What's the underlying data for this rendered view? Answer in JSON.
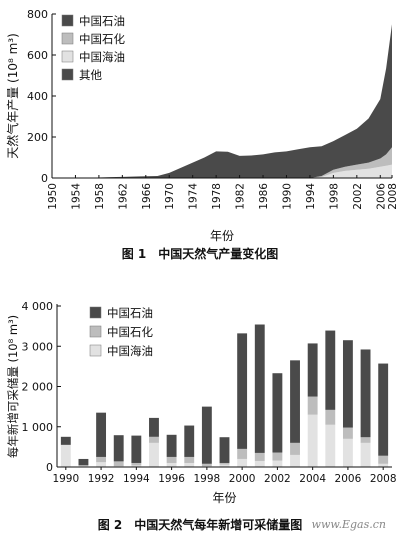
{
  "colors": {
    "cnpc": "#4a4a4a",
    "sinopec": "#bdbdbd",
    "cnooc": "#e2e2e2",
    "other": "#4a4a4a",
    "axis": "#111111"
  },
  "chart_data": [
    {
      "type": "area",
      "caption": "图 1　中国天然气产量变化图",
      "xlabel": "年份",
      "ylabel": "天然气年产量 (10⁸ m³)",
      "ylim": [
        0,
        800
      ],
      "yticks": [
        0,
        200,
        400,
        600,
        800
      ],
      "xlim": [
        1950,
        2008
      ],
      "xticks": [
        1950,
        1954,
        1958,
        1962,
        1966,
        1970,
        1974,
        1978,
        1982,
        1986,
        1990,
        1994,
        1998,
        2002,
        2006,
        2008
      ],
      "legend_position": "top-left",
      "x": [
        1950,
        1955,
        1960,
        1965,
        1968,
        1970,
        1972,
        1974,
        1976,
        1978,
        1980,
        1982,
        1984,
        1986,
        1988,
        1990,
        1992,
        1994,
        1996,
        1998,
        2000,
        2002,
        2004,
        2006,
        2007,
        2008
      ],
      "series": [
        {
          "name": "中国海油",
          "values": [
            0,
            0,
            0,
            0,
            0,
            0,
            0,
            0,
            0,
            0,
            0,
            0,
            0,
            0,
            0,
            0,
            0,
            0,
            5,
            25,
            35,
            40,
            45,
            55,
            60,
            65
          ]
        },
        {
          "name": "中国石化",
          "values": [
            0,
            0,
            0,
            0,
            0,
            0,
            0,
            0,
            0,
            0,
            0,
            0,
            0,
            0,
            0,
            0,
            0,
            0,
            5,
            15,
            20,
            25,
            30,
            40,
            55,
            85
          ]
        },
        {
          "name": "中国石油",
          "values": [
            0,
            0,
            4,
            8,
            10,
            25,
            50,
            75,
            100,
            130,
            128,
            108,
            110,
            115,
            125,
            130,
            140,
            150,
            145,
            140,
            155,
            175,
            215,
            290,
            420,
            600
          ]
        },
        {
          "name": "其他",
          "values": [
            0,
            0,
            0,
            0,
            0,
            0,
            0,
            0,
            0,
            0,
            0,
            0,
            0,
            0,
            0,
            0,
            0,
            0,
            0,
            0,
            0,
            0,
            0,
            0,
            0,
            0
          ]
        }
      ],
      "legend_order": [
        "中国石油",
        "中国石化",
        "中国海油",
        "其他"
      ]
    },
    {
      "type": "bar",
      "caption": "图 2　中国天然气每年新增可采储量图",
      "xlabel": "年份",
      "ylabel": "每年新增可采储量 (10⁸ m³)",
      "ylim": [
        0,
        4000
      ],
      "yticks": [
        0,
        1000,
        2000,
        3000,
        4000
      ],
      "ytick_labels": [
        "0",
        "1 000",
        "2 000",
        "3 000",
        "4 000"
      ],
      "categories": [
        "1990",
        "1991",
        "1992",
        "1993",
        "1994",
        "1995",
        "1996",
        "1997",
        "1998",
        "1999",
        "2000",
        "2001",
        "2002",
        "2003",
        "2004",
        "2005",
        "2006",
        "2007",
        "2008"
      ],
      "xtick_labels": [
        "1990",
        "1992",
        "1994",
        "1996",
        "1998",
        "2000",
        "2002",
        "2004",
        "2006",
        "2008"
      ],
      "legend_position": "top-left",
      "series": [
        {
          "name": "中国海油",
          "values": [
            550,
            40,
            120,
            20,
            40,
            600,
            100,
            100,
            20,
            60,
            200,
            150,
            160,
            300,
            1300,
            1050,
            700,
            600,
            80
          ]
        },
        {
          "name": "中国石化",
          "values": [
            0,
            0,
            130,
            120,
            60,
            150,
            150,
            150,
            60,
            40,
            250,
            200,
            200,
            300,
            450,
            370,
            280,
            140,
            200
          ]
        },
        {
          "name": "中国石油",
          "values": [
            200,
            160,
            1100,
            650,
            680,
            470,
            550,
            780,
            1420,
            640,
            2870,
            3190,
            1970,
            2050,
            1320,
            1970,
            2170,
            2180,
            2290
          ]
        }
      ],
      "legend_order": [
        "中国石油",
        "中国石化",
        "中国海油"
      ]
    }
  ],
  "watermark": "www.Egas.cn"
}
